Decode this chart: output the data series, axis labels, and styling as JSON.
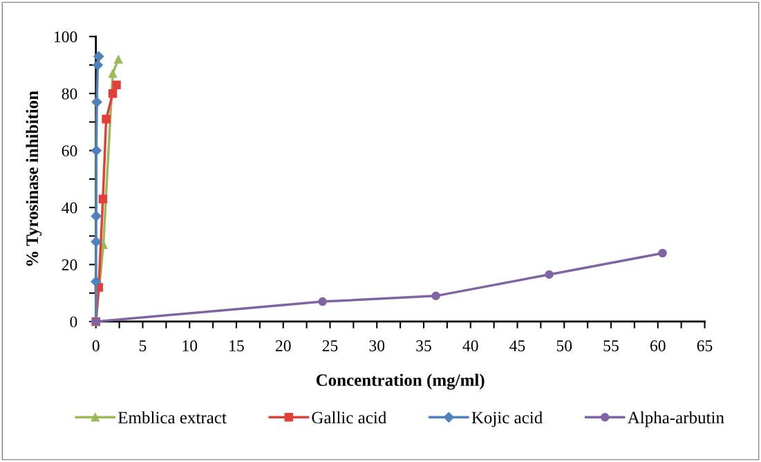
{
  "chart_data": {
    "type": "line",
    "xlabel": "Concentration (mg/ml)",
    "ylabel": "% Tyrosinase inhibition",
    "xlim": [
      0,
      65
    ],
    "ylim": [
      0,
      100
    ],
    "xticks": [
      0,
      {
        "value": 2.5,
        "label": null
      },
      5,
      {
        "value": 7.5,
        "label": null
      },
      10,
      {
        "value": 12.5,
        "label": null
      },
      15,
      {
        "value": 17.5,
        "label": null
      },
      20,
      {
        "value": 22.5,
        "label": null
      },
      25,
      {
        "value": 27.5,
        "label": null
      },
      30,
      {
        "value": 32.5,
        "label": null
      },
      35,
      {
        "value": 37.5,
        "label": null
      },
      40,
      {
        "value": 42.5,
        "label": null
      },
      45,
      {
        "value": 47.5,
        "label": null
      },
      50,
      {
        "value": 52.5,
        "label": null
      },
      55,
      {
        "value": 57.5,
        "label": null
      },
      60,
      {
        "value": 62.5,
        "label": null
      },
      65
    ],
    "yticks": [
      0,
      {
        "value": 10,
        "label": null
      },
      20,
      {
        "value": 30,
        "label": null
      },
      40,
      {
        "value": 50,
        "label": null
      },
      60,
      {
        "value": 70,
        "label": null
      },
      80,
      {
        "value": 90,
        "label": null
      },
      100
    ],
    "grid": false,
    "legend": "bottom",
    "series": [
      {
        "name": "Emblica extract",
        "color": "#9bbb59",
        "marker": "triangle",
        "x": [
          0,
          0.8,
          1.8,
          2.4
        ],
        "values": [
          0,
          27,
          87,
          92
        ]
      },
      {
        "name": "Gallic acid",
        "color": "#e0403a",
        "marker": "square",
        "x": [
          0,
          0.3,
          0.75,
          1.1,
          1.8,
          2.2
        ],
        "values": [
          0,
          12,
          43,
          71,
          80,
          83
        ]
      },
      {
        "name": "Kojic acid",
        "color": "#4f81bd",
        "marker": "diamond",
        "x": [
          0,
          0.01,
          0.02,
          0.03,
          0.05,
          0.1,
          0.2,
          0.3
        ],
        "values": [
          0,
          14,
          28,
          37,
          60,
          77,
          90,
          93
        ]
      },
      {
        "name": "Alpha-arbutin",
        "color": "#8064a2",
        "marker": "circle",
        "x": [
          0,
          24.2,
          36.3,
          48.4,
          60.5
        ],
        "values": [
          0,
          7,
          9,
          16.5,
          24
        ]
      }
    ]
  }
}
